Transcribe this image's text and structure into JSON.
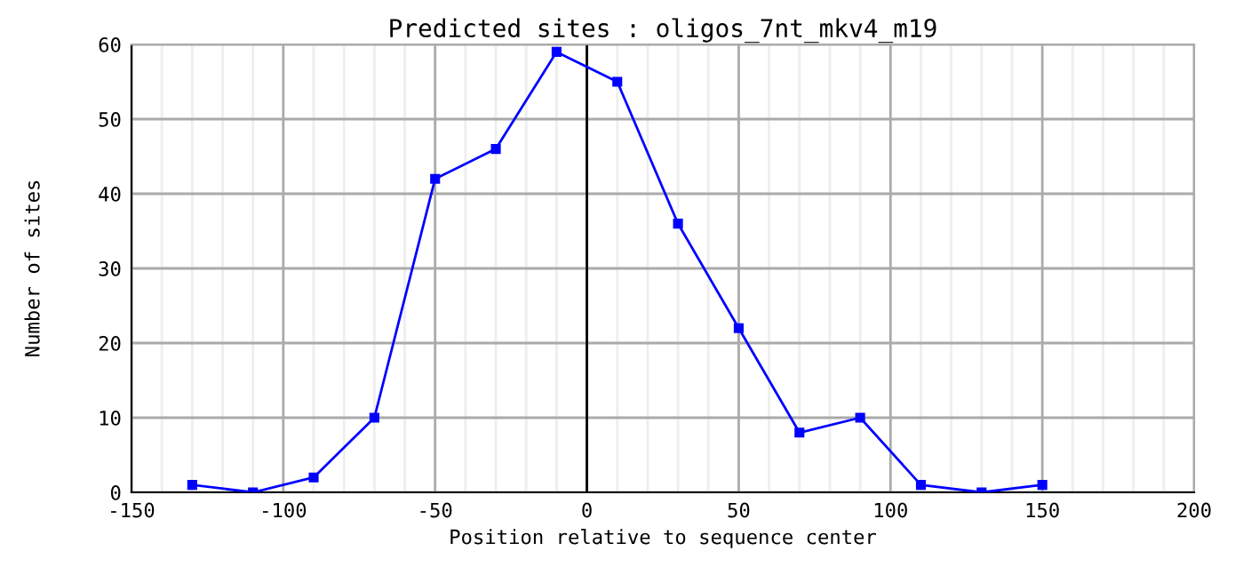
{
  "chart_data": {
    "type": "line",
    "title": "Predicted sites : oligos_7nt_mkv4_m19",
    "xlabel": "Position relative to sequence center",
    "ylabel": "Number of sites",
    "x": [
      -130,
      -110,
      -90,
      -70,
      -50,
      -30,
      -10,
      10,
      30,
      50,
      70,
      90,
      110,
      130,
      150
    ],
    "series": [
      {
        "color": "#0000ff",
        "values": [
          1,
          0,
          2,
          10,
          42,
          46,
          59,
          55,
          36,
          22,
          8,
          10,
          1,
          0,
          1
        ]
      }
    ],
    "marker": "square",
    "line_style": "solid",
    "grid": true,
    "xlim": [
      -150,
      200
    ],
    "ylim": [
      0,
      60
    ],
    "xticks": [
      -150,
      {
        "value": -140,
        "label": null
      },
      {
        "value": -130,
        "label": null
      },
      {
        "value": -120,
        "label": null
      },
      {
        "value": -110,
        "label": null
      },
      -100,
      {
        "value": -90,
        "label": null
      },
      {
        "value": -80,
        "label": null
      },
      {
        "value": -70,
        "label": null
      },
      {
        "value": -60,
        "label": null
      },
      -50,
      {
        "value": -40,
        "label": null
      },
      {
        "value": -30,
        "label": null
      },
      {
        "value": -20,
        "label": null
      },
      {
        "value": -10,
        "label": null
      },
      0,
      {
        "value": 10,
        "label": null
      },
      {
        "value": 20,
        "label": null
      },
      {
        "value": 30,
        "label": null
      },
      {
        "value": 40,
        "label": null
      },
      50,
      {
        "value": 60,
        "label": null
      },
      {
        "value": 70,
        "label": null
      },
      {
        "value": 80,
        "label": null
      },
      {
        "value": 90,
        "label": null
      },
      100,
      {
        "value": 110,
        "label": null
      },
      {
        "value": 120,
        "label": null
      },
      {
        "value": 130,
        "label": null
      },
      {
        "value": 140,
        "label": null
      },
      150,
      {
        "value": 160,
        "label": null
      },
      {
        "value": 170,
        "label": null
      },
      {
        "value": 180,
        "label": null
      },
      {
        "value": 190,
        "label": null
      },
      200
    ],
    "yticks": [
      0,
      10,
      20,
      30,
      40,
      50,
      60
    ],
    "ref_lines": [
      {
        "axis": "x",
        "value": 0,
        "color": "#000000"
      }
    ]
  }
}
